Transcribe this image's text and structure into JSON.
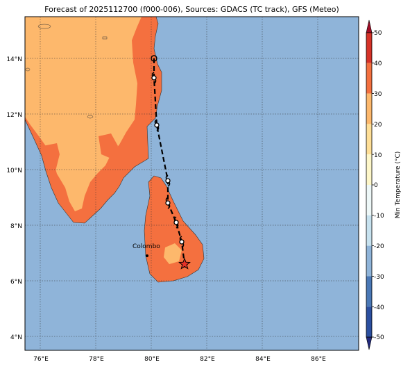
{
  "title": "Forecast of 2025112700 (f000-006), Sources: GDACS (TC track), GFS (Meteo)",
  "x_ticks": [
    "76°E",
    "78°E",
    "80°E",
    "82°E",
    "84°E",
    "86°E"
  ],
  "y_ticks": [
    "14°N",
    "12°N",
    "10°N",
    "8°N",
    "6°N",
    "4°N"
  ],
  "city": {
    "name": "Colombo"
  },
  "colorbar": {
    "label": "Min Temperature (°C)",
    "ticks": [
      "50",
      "40",
      "30",
      "20",
      "10",
      "0",
      "-10",
      "-20",
      "-30",
      "-40",
      "-50"
    ],
    "colors": [
      "#222a7e",
      "#2b4fa0",
      "#4a78b6",
      "#8fb4d9",
      "#c7e2ef",
      "#eef8f8",
      "#fef7c9",
      "#ffdf97",
      "#fdb86c",
      "#f4703f",
      "#d63228",
      "#a20c26"
    ]
  },
  "colors": {
    "sea": "#8fb4d9",
    "land_warm": "#f4703f",
    "land_mild": "#fdb86c"
  },
  "track": {
    "longitudes": [
      80.1,
      80.1,
      80.2,
      80.6,
      80.6,
      80.9,
      81.1,
      81.2
    ],
    "latitudes": [
      14.0,
      13.3,
      11.6,
      9.6,
      8.8,
      8.1,
      7.4,
      6.6
    ],
    "current_position": [
      81.2,
      6.6
    ]
  }
}
